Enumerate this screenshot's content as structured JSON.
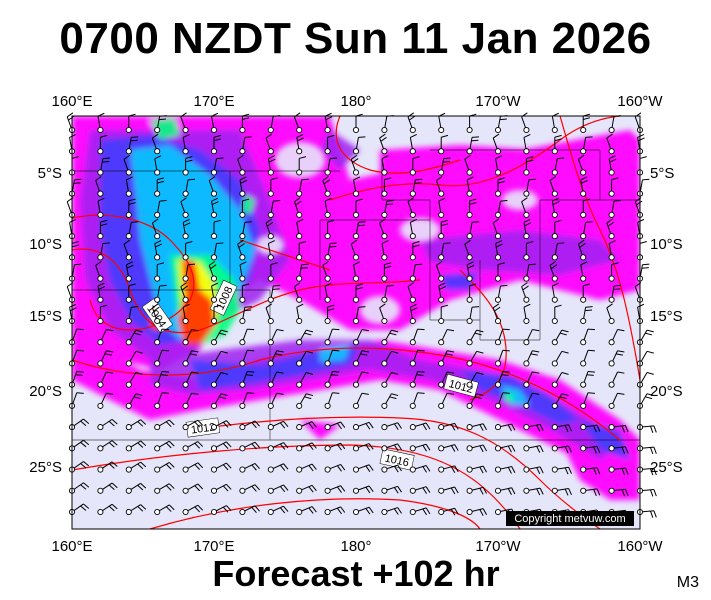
{
  "title": "0700 NZDT Sun 11 Jan 2026",
  "forecast": "Forecast +102 hr",
  "model": "M3",
  "copyright": "Copyright metvuw.com",
  "lon_labels": [
    "160°E",
    "170°E",
    "180°",
    "170°W",
    "160°W"
  ],
  "lat_labels": [
    "5°S",
    "10°S",
    "15°S",
    "20°S",
    "25°S"
  ],
  "isobar_labels": [
    "1004",
    "1008",
    "1012",
    "1012",
    "1016"
  ],
  "colors": {
    "background": "#e6e6fa",
    "rain_light": "#ff00ff",
    "rain_low": "#a020f0",
    "rain_mid": "#3c3cff",
    "rain_high": "#00c8ff",
    "rain_higher": "#00ff80",
    "rain_heavy": "#ffff00",
    "rain_extreme": "#ff4000",
    "isobar": "#ff0000"
  }
}
